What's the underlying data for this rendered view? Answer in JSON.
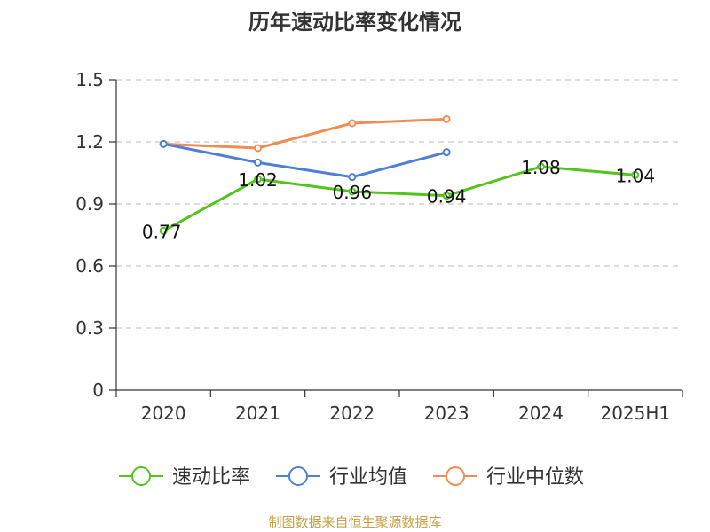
{
  "chart_data": {
    "type": "line",
    "title": "历年速动比率变化情况",
    "categories": [
      "2020",
      "2021",
      "2022",
      "2023",
      "2024",
      "2025H1"
    ],
    "ylim": [
      0,
      1.5
    ],
    "yticks": [
      "0",
      "0.3",
      "0.6",
      "0.9",
      "1.2",
      "1.5"
    ],
    "grid": true,
    "legend_position": "bottom",
    "series": [
      {
        "name": "速动比率",
        "color": "#52c41a",
        "values": [
          0.77,
          1.02,
          0.96,
          0.94,
          1.08,
          1.04
        ],
        "labels": [
          "0.77",
          "1.02",
          "0.96",
          "0.94",
          "1.08",
          "1.04"
        ]
      },
      {
        "name": "行业均值",
        "color": "#4e7fd8",
        "values": [
          1.19,
          1.1,
          1.03,
          1.15,
          null,
          null
        ]
      },
      {
        "name": "行业中位数",
        "color": "#f28c55",
        "values": [
          1.19,
          1.17,
          1.29,
          1.31,
          null,
          null
        ]
      }
    ]
  },
  "source": {
    "text": "制图数据来自恒生聚源数据库",
    "color": "#c8a040"
  }
}
